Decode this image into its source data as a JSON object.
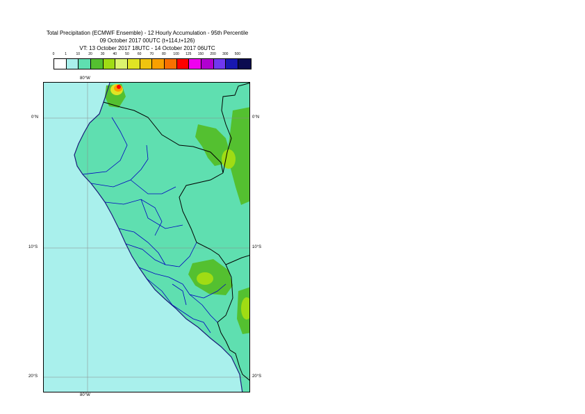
{
  "header": {
    "title_line1": "Total Precipitation (ECMWF Ensemble) - 12 Hourly Accumulation - 95th Percentile",
    "title_line2": "09 October 2017 00UTC (t+114,t+126)",
    "title_line3": "VT: 13 October 2017 18UTC - 14 October 2017 06UTC"
  },
  "legend": {
    "ticks": [
      "0",
      "1",
      "10",
      "20",
      "30",
      "40",
      "50",
      "60",
      "70",
      "80",
      "100",
      "125",
      "150",
      "200",
      "300",
      "500"
    ],
    "colors": [
      "#ffffff",
      "#a9f0ec",
      "#5fdfb0",
      "#54c030",
      "#a0dc14",
      "#dcf46e",
      "#e0e424",
      "#f0c410",
      "#f8a000",
      "#f87000",
      "#ff0000",
      "#f000f0",
      "#b000d0",
      "#7038f0",
      "#1818b0",
      "#0c0c50"
    ]
  },
  "map": {
    "labels": {
      "lon_top": "80°W",
      "lon_bottom": "80°W",
      "lat_0_left": "0°N",
      "lat_0_right": "0°N",
      "lat_10_left": "10°S",
      "lat_10_right": "10°S",
      "lat_20_left": "20°S",
      "lat_20_right": "20°S"
    },
    "colors": {
      "sea": "#a9f0ec",
      "land": "#5fdfb0",
      "heavy": "#a0dc14",
      "moderate": "#54c030",
      "coast": "#1a1a7a",
      "border": "#000000",
      "province": "#0000c0",
      "grid": "#888888"
    }
  }
}
